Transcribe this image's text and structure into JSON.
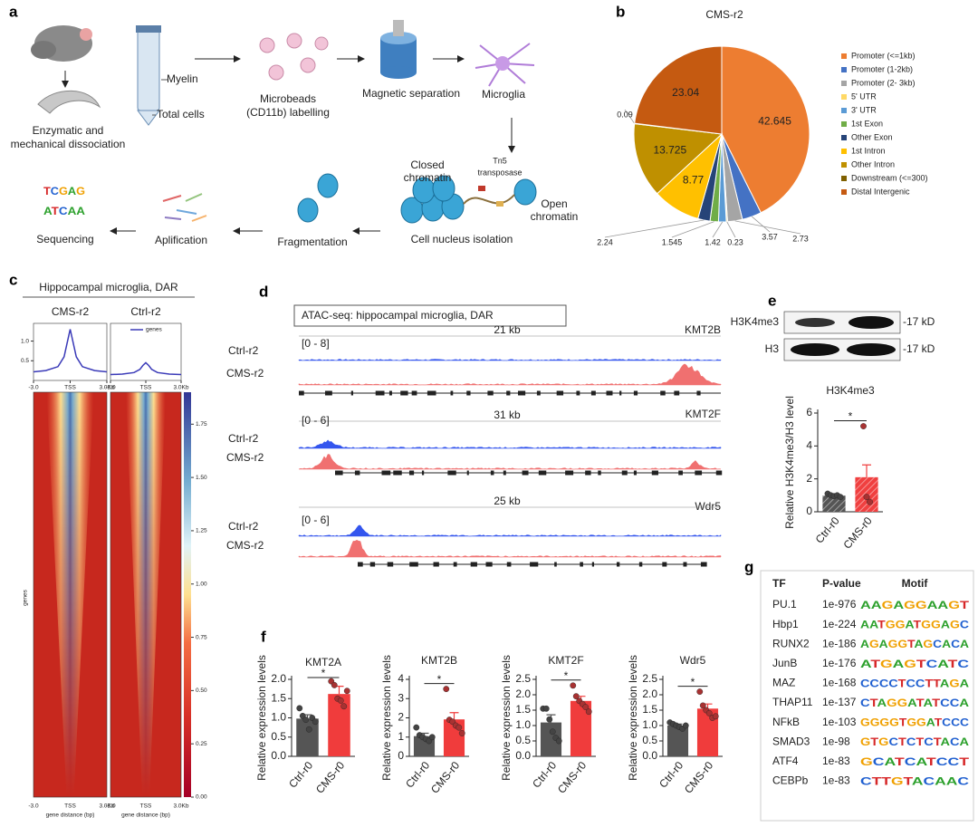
{
  "panel_labels": [
    "a",
    "b",
    "c",
    "d",
    "e",
    "f",
    "g"
  ],
  "workflow": {
    "dissociation": [
      "Enzymatic and",
      "mechanical dissociation"
    ],
    "myelin": "Myelin",
    "total_cells": "Total cells",
    "labelling": [
      "Microbeads",
      "(CD11b) labelling"
    ],
    "separation": "Magnetic separation",
    "microglia": "Microglia",
    "closed": [
      "Closed",
      "chromatin"
    ],
    "tn5": [
      "Tn5",
      "transposase"
    ],
    "open": [
      "Open",
      "chromatin"
    ],
    "isolation": "Cell nucleus isolation",
    "fragmentation": "Fragmentation",
    "amplification": "Aplification",
    "sequencing": "Sequencing",
    "logo": [
      "TCGAG",
      "ATCAA"
    ]
  },
  "heatmap": {
    "title": "Hippocampal microglia, DAR",
    "columns": [
      "CMS-r2",
      "Ctrl-r2"
    ],
    "ylabel": "genes",
    "xlabel": "gene distance (bp)",
    "xticks": [
      "-3.0",
      "TSS",
      "3.0Kb"
    ],
    "colorbar_lim": [
      0,
      1.9
    ],
    "colorbar_ticks": [
      {
        "value": 0,
        "label": "0.00"
      },
      {
        "value": 0.25,
        "label": "0.25"
      },
      {
        "value": 0.5,
        "label": "0.50"
      },
      {
        "value": 0.75,
        "label": "0.75"
      },
      {
        "value": 1,
        "label": "1.00"
      },
      {
        "value": 1.25,
        "label": "1.25"
      },
      {
        "value": 1.5,
        "label": "1.50"
      },
      {
        "value": 1.75,
        "label": "1.75"
      }
    ]
  },
  "tracks": {
    "title": "ATAC-seq: hippocampal microglia, DAR",
    "loci": [
      {
        "gene": "KMT2B",
        "span": "21 kb",
        "range": "[0 - 8]",
        "rows": [
          "Ctrl-r2",
          "CMS-r2"
        ]
      },
      {
        "gene": "KMT2F",
        "span": "31 kb",
        "range": "[0 - 6]",
        "rows": [
          "Ctrl-r2",
          "CMS-r2"
        ]
      },
      {
        "gene": "Wdr5",
        "span": "25 kb",
        "range": "[0 - 6]",
        "rows": [
          "Ctrl-r2",
          "CMS-r2"
        ]
      }
    ]
  },
  "blot": {
    "bands": [
      {
        "name": "H3K4me3",
        "size": "-17 kD"
      },
      {
        "name": "H3",
        "size": "-17 kD"
      }
    ]
  },
  "motif_table": {
    "header": [
      "TF",
      "P-value",
      "Motif"
    ],
    "rows": [
      [
        "PU.1",
        "1e-976",
        "AAGAGGAAGT"
      ],
      [
        "Hbp1",
        "1e-224",
        "AATGGATGGAGC"
      ],
      [
        "RUNX2",
        "1e-186",
        "AGAGGTAGCACA"
      ],
      [
        "JunB",
        "1e-176",
        "ATGAGTCATC"
      ],
      [
        "MAZ",
        "1e-168",
        "CCCCTCCTTAGA"
      ],
      [
        "THAP11",
        "1e-137",
        "CTAGGATATCCA"
      ],
      [
        "NFkB",
        "1e-103",
        "GGGGTGGATCCC"
      ],
      [
        "SMAD3",
        "1e-98",
        "GTGCTCTCTACA"
      ],
      [
        "ATF4",
        "1e-83",
        "GCATCATCCT"
      ],
      [
        "CEBPb",
        "1e-83",
        "CTTGTACAAC"
      ]
    ]
  },
  "chart_data": [
    {
      "type": "pie",
      "title": "CMS-r2",
      "labels": [
        "Promoter (<=1kb)",
        "Promoter (1-2kb)",
        "Promoter (2- 3kb)",
        "5' UTR",
        "3' UTR",
        "1st Exon",
        "Other Exon",
        "1st Intron",
        "Other Intron",
        "Downstream (<=300)",
        "Distal Intergenic"
      ],
      "values": [
        42.645,
        3.57,
        2.73,
        0.23,
        1.42,
        1.545,
        2.24,
        8.77,
        13.725,
        0.09,
        23.04
      ],
      "colors": [
        "#ed7d31",
        "#4472c4",
        "#a5a5a5",
        "#ffd966",
        "#5b9bd5",
        "#70ad47",
        "#264478",
        "#ffc000",
        "#bf9000",
        "#7f6000",
        "#c55a11"
      ]
    },
    {
      "type": "line",
      "x": [
        -3,
        -2,
        -1,
        -0.5,
        -0.25,
        0,
        0.25,
        0.5,
        1,
        2,
        3
      ],
      "values": [
        0.22,
        0.25,
        0.35,
        0.6,
        0.95,
        1.3,
        0.95,
        0.6,
        0.35,
        0.25,
        0.22
      ],
      "color": "#3a3ab8",
      "xlim": [
        -3,
        3
      ],
      "ylim": [
        0,
        1.45
      ],
      "xticks": [
        {
          "value": -3,
          "label": "-3.0"
        },
        {
          "value": 0,
          "label": "TSS"
        },
        {
          "value": 3,
          "label": "3.0Kb"
        }
      ],
      "yticks": [
        0.5,
        {
          "value": 1,
          "label": "1.0"
        }
      ]
    },
    {
      "type": "line",
      "x": [
        -3,
        -2,
        -1,
        -0.5,
        -0.25,
        0,
        0.25,
        0.5,
        1,
        2,
        3
      ],
      "series": [
        {
          "name": "genes",
          "color": "#3a3ab8",
          "values": [
            0.15,
            0.16,
            0.2,
            0.28,
            0.38,
            0.45,
            0.38,
            0.28,
            0.2,
            0.16,
            0.15
          ]
        }
      ],
      "xlim": [
        -3,
        3
      ],
      "ylim": [
        0,
        1.45
      ],
      "xticks": [
        {
          "value": -3,
          "label": "-3.0"
        },
        {
          "value": 0,
          "label": "TSS"
        },
        {
          "value": 3,
          "label": "3.0Kb"
        }
      ]
    },
    {
      "type": "bar",
      "title": "H3K4me3",
      "ylabel": "Relative H3K4me3/H3 level",
      "categories": [
        "Ctrl-r0",
        "CMS-r0"
      ],
      "values": [
        0.98,
        2.1
      ],
      "errors": [
        0.05,
        0.75
      ],
      "points": [
        [
          1.1,
          1.0,
          0.95,
          1.0,
          0.9
        ],
        [
          5.2,
          0.9,
          0.6
        ]
      ],
      "colors": [
        "#555555",
        "#f04040"
      ],
      "hatch": true,
      "ylim": [
        0,
        6
      ],
      "yticks": [
        0,
        2,
        4,
        6
      ],
      "significance": "*"
    },
    {
      "type": "bar",
      "title": "KMT2A",
      "ylabel": "Relative expression levels",
      "categories": [
        "Ctrl-r0",
        "CMS-r0"
      ],
      "values": [
        0.98,
        1.62
      ],
      "errors": [
        0.1,
        0.2
      ],
      "points": [
        [
          1.25,
          1.05,
          0.95,
          0.7,
          1.0,
          0.9
        ],
        [
          1.95,
          1.85,
          1.5,
          1.45,
          1.3,
          1.7
        ]
      ],
      "colors": [
        "#555555",
        "#f03c3c"
      ],
      "ylim": [
        0,
        2
      ],
      "yticks": [
        {
          "value": 0,
          "label": "0.0"
        },
        0.5,
        {
          "value": 1,
          "label": "1.0"
        },
        1.5,
        {
          "value": 2,
          "label": "2.0"
        }
      ],
      "significance": "*"
    },
    {
      "type": "bar",
      "title": "KMT2B",
      "ylabel": "Relative expression levels",
      "categories": [
        "Ctrl-r0",
        "CMS-r0"
      ],
      "values": [
        1.05,
        1.92
      ],
      "errors": [
        0.15,
        0.35
      ],
      "points": [
        [
          1.5,
          1.1,
          1.0,
          0.9,
          0.8,
          1.0
        ],
        [
          3.5,
          1.9,
          1.8,
          1.6,
          1.5,
          1.2
        ]
      ],
      "colors": [
        "#555555",
        "#f03c3c"
      ],
      "ylim": [
        0,
        4
      ],
      "yticks": [
        0,
        1,
        2,
        3,
        4
      ],
      "significance": "*"
    },
    {
      "type": "bar",
      "title": "KMT2F",
      "ylabel": "Relative expression levels",
      "categories": [
        "Ctrl-r0",
        "CMS-r0"
      ],
      "values": [
        1.1,
        1.8
      ],
      "errors": [
        0.25,
        0.15
      ],
      "points": [
        [
          1.55,
          1.55,
          1.2,
          0.8,
          0.6,
          0.5
        ],
        [
          2.3,
          1.95,
          1.8,
          1.7,
          1.6,
          1.45
        ]
      ],
      "colors": [
        "#555555",
        "#f03c3c"
      ],
      "ylim": [
        0,
        2.5
      ],
      "yticks": [
        {
          "value": 0,
          "label": "0.0"
        },
        0.5,
        {
          "value": 1,
          "label": "1.0"
        },
        1.5,
        {
          "value": 2,
          "label": "2.0"
        },
        2.5
      ],
      "significance": "*"
    },
    {
      "type": "bar",
      "title": "Wdr5",
      "ylabel": "Relative expression levels",
      "categories": [
        "Ctrl-r0",
        "CMS-r0"
      ],
      "values": [
        1.0,
        1.55
      ],
      "errors": [
        0.05,
        0.15
      ],
      "points": [
        [
          1.1,
          1.05,
          1.0,
          0.95,
          0.9,
          1.0
        ],
        [
          2.1,
          1.65,
          1.5,
          1.4,
          1.25,
          1.3
        ]
      ],
      "colors": [
        "#555555",
        "#f03c3c"
      ],
      "ylim": [
        0,
        2.5
      ],
      "yticks": [
        {
          "value": 0,
          "label": "0.0"
        },
        0.5,
        {
          "value": 1,
          "label": "1.0"
        },
        1.5,
        {
          "value": 2,
          "label": "2.0"
        },
        2.5
      ],
      "significance": "*"
    }
  ]
}
